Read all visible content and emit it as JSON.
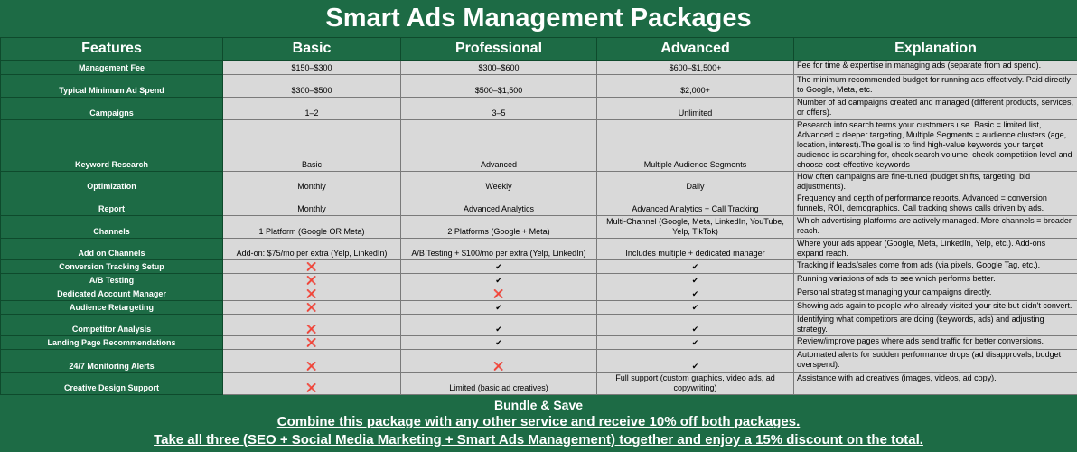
{
  "title": "Smart Ads Management Packages",
  "table": {
    "columns": [
      "Features",
      "Basic",
      "Professional",
      "Advanced",
      "Explanation"
    ],
    "rows": [
      {
        "feature": "Management Fee",
        "basic": "$150–$300",
        "professional": "$300–$600",
        "advanced": "$600–$1,500+",
        "explanation": "Fee for time & expertise in managing ads (separate from ad spend)."
      },
      {
        "feature": "Typical Minimum Ad Spend",
        "basic": "$300–$500",
        "professional": "$500–$1,500",
        "advanced": "$2,000+",
        "explanation": "The minimum recommended budget for running ads effectively. Paid directly to Google, Meta, etc."
      },
      {
        "feature": "Campaigns",
        "basic": "1–2",
        "professional": "3–5",
        "advanced": "Unlimited",
        "explanation": "Number of ad campaigns created and managed (different products, services, or offers)."
      },
      {
        "feature": "Keyword Research",
        "basic": "Basic",
        "professional": "Advanced",
        "advanced": "Multiple Audience Segments",
        "explanation": "Research into search terms your customers use. Basic = limited list, Advanced = deeper targeting, Multiple Segments = audience clusters (age, location, interest).The goal is to find high-value keywords your target audience is searching for, check search volume, check competition level and choose cost-effective keywords"
      },
      {
        "feature": "Optimization",
        "basic": "Monthly",
        "professional": "Weekly",
        "advanced": "Daily",
        "explanation": "How often campaigns are fine-tuned (budget shifts, targeting, bid adjustments)."
      },
      {
        "feature": "Report",
        "basic": "Monthly",
        "professional": "Advanced Analytics",
        "advanced": "Advanced Analytics + Call Tracking",
        "explanation": "Frequency and depth of performance reports. Advanced = conversion funnels, ROI, demographics. Call tracking shows calls driven by ads."
      },
      {
        "feature": "Channels",
        "basic": "1 Platform (Google OR Meta)",
        "professional": "2 Platforms (Google + Meta)",
        "advanced": "Multi-Channel (Google, Meta, LinkedIn, YouTube, Yelp, TikTok)",
        "explanation": "Which advertising platforms are actively managed. More channels = broader reach."
      },
      {
        "feature": "Add on Channels",
        "basic": "Add-on: $75/mo per extra (Yelp, LinkedIn)",
        "professional": "A/B Testing + $100/mo per extra (Yelp, LinkedIn)",
        "advanced": "Includes multiple + dedicated manager",
        "explanation": "Where your ads appear (Google, Meta, LinkedIn, Yelp, etc.). Add-ons expand reach."
      },
      {
        "feature": "Conversion Tracking Setup",
        "basic": "❌",
        "professional": "✔",
        "advanced": "✔",
        "explanation": "Tracking if leads/sales come from ads (via pixels, Google Tag, etc.)."
      },
      {
        "feature": "A/B Testing",
        "basic": "❌",
        "professional": "✔",
        "advanced": "✔",
        "explanation": "Running variations of ads to see which performs better."
      },
      {
        "feature": "Dedicated Account Manager",
        "basic": "❌",
        "professional": "❌",
        "advanced": "✔",
        "explanation": "Personal strategist managing your campaigns directly."
      },
      {
        "feature": "Audience Retargeting",
        "basic": "❌",
        "professional": "✔",
        "advanced": "✔",
        "explanation": "Showing ads again to people who already visited your site but didn't convert."
      },
      {
        "feature": "Competitor Analysis",
        "basic": "❌",
        "professional": "✔",
        "advanced": "✔",
        "explanation": "Identifying what competitors are doing (keywords, ads) and adjusting strategy."
      },
      {
        "feature": "Landing Page Recommendations",
        "basic": "❌",
        "professional": "✔",
        "advanced": "✔",
        "explanation": "Review/improve pages where ads send traffic for better conversions."
      },
      {
        "feature": "24/7 Monitoring Alerts",
        "basic": "❌",
        "professional": "❌",
        "advanced": "✔",
        "explanation": "Automated alerts for sudden performance drops (ad disapprovals, budget overspend)."
      },
      {
        "feature": "Creative Design Support",
        "basic": "❌",
        "professional": "Limited (basic ad creatives)",
        "advanced": "Full support (custom graphics, video ads, ad copywriting)",
        "explanation": "Assistance with ad creatives (images, videos, ad copy)."
      }
    ]
  },
  "footer": {
    "heading": "Bundle & Save",
    "lines": [
      "Combine this package with any other service and receive 10% off both packages.",
      "Take all three (SEO + Social Media Marketing + Smart Ads Management) together and enjoy a 15% discount on the total."
    ]
  }
}
